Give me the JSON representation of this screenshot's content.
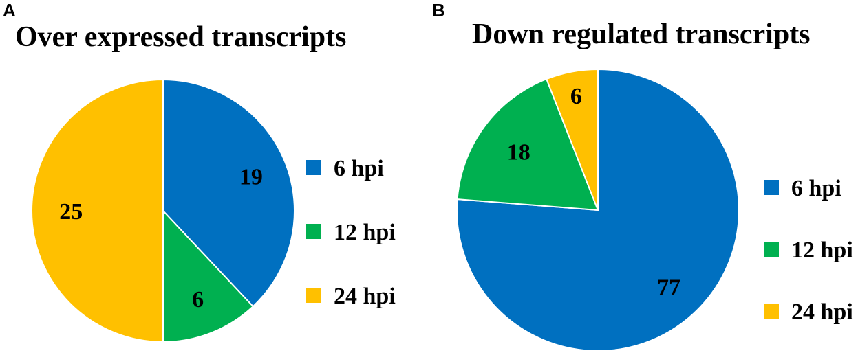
{
  "chart_data": [
    {
      "panel": "A",
      "type": "pie",
      "title": "Over expressed transcripts",
      "categories": [
        "6 hpi",
        "12 hpi",
        "24 hpi"
      ],
      "values": [
        19,
        6,
        25
      ],
      "colors": [
        "#0070C0",
        "#00B050",
        "#FFC000"
      ],
      "legend": [
        "6 hpi",
        "12 hpi",
        "24 hpi"
      ],
      "legend_position": "right"
    },
    {
      "panel": "B",
      "type": "pie",
      "title": "Down regulated transcripts",
      "categories": [
        "6 hpi",
        "12 hpi",
        "24 hpi"
      ],
      "values": [
        77,
        18,
        6
      ],
      "colors": [
        "#0070C0",
        "#00B050",
        "#FFC000"
      ],
      "legend": [
        "6 hpi",
        "12 hpi",
        "24 hpi"
      ],
      "legend_position": "right"
    }
  ]
}
